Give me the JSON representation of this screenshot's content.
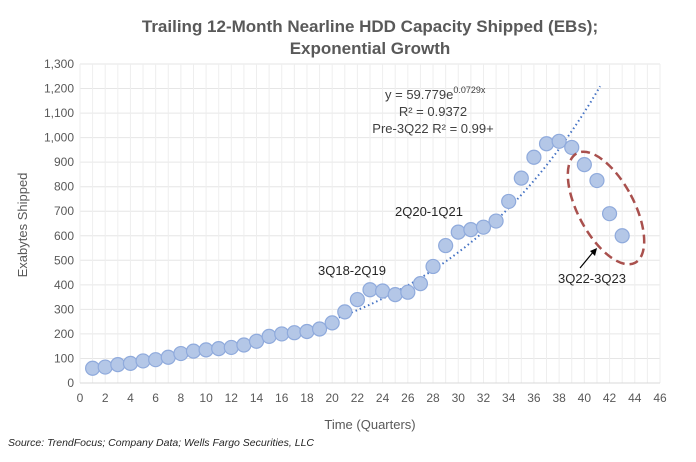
{
  "chart_data": {
    "type": "scatter",
    "title_lines": [
      "Trailing 12-Month Nearline HDD Capacity Shipped (EBs);",
      "Exponential Growth"
    ],
    "xlabel": "Time (Quarters)",
    "ylabel": "Exabytes Shipped",
    "xlim": [
      0,
      46
    ],
    "ylim": [
      0,
      1300
    ],
    "xticks": [
      0,
      2,
      4,
      6,
      8,
      10,
      12,
      14,
      16,
      18,
      20,
      22,
      24,
      26,
      28,
      30,
      32,
      34,
      36,
      38,
      40,
      42,
      44,
      46
    ],
    "yticks": [
      0,
      100,
      200,
      300,
      400,
      500,
      600,
      700,
      800,
      900,
      1000,
      1100,
      1200,
      1300
    ],
    "ytick_labels": [
      "0",
      "100",
      "200",
      "300",
      "400",
      "500",
      "600",
      "700",
      "800",
      "900",
      "1,000",
      "1,100",
      "1,200",
      "1,300"
    ],
    "grid": true,
    "x": [
      1,
      2,
      3,
      4,
      5,
      6,
      7,
      8,
      9,
      10,
      11,
      12,
      13,
      14,
      15,
      16,
      17,
      18,
      19,
      20,
      21,
      22,
      23,
      24,
      25,
      26,
      27,
      28,
      29,
      30,
      31,
      32,
      33,
      34,
      35,
      36,
      37,
      38,
      39,
      40,
      41,
      42,
      43
    ],
    "y": [
      60,
      65,
      75,
      80,
      90,
      95,
      105,
      120,
      130,
      135,
      140,
      145,
      155,
      170,
      190,
      200,
      205,
      210,
      220,
      245,
      290,
      340,
      380,
      375,
      360,
      370,
      405,
      475,
      560,
      615,
      625,
      635,
      660,
      740,
      835,
      920,
      975,
      985,
      960,
      890,
      825,
      690,
      600
    ],
    "marker_color": "#b4c7e7",
    "marker_edge": "#8faadc",
    "trendline": {
      "type": "exponential",
      "a": 59.779,
      "b": 0.0729,
      "color": "#4472c4",
      "equation": "y = 59.779e",
      "exponent": "0.0729x",
      "r2": "R² = 0.9372",
      "note": "Pre-3Q22  R² = 0.99+"
    },
    "annotations": [
      "3Q18-2Q19",
      "2Q20-1Q21",
      "3Q22-3Q23"
    ],
    "highlight_color": "#a9504d"
  },
  "source": "Source:  TrendFocus; Company Data; Wells Fargo Securities, LLC"
}
